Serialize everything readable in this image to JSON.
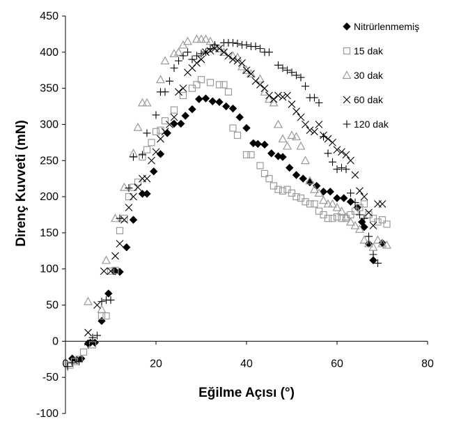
{
  "chart_data": {
    "type": "scatter",
    "title": "",
    "xlabel": "Eğilme Açısı (°)",
    "ylabel": "Direnç Kuvveti (mN)",
    "xlim": [
      0,
      80
    ],
    "ylim": [
      -100,
      450
    ],
    "xticks": [
      "0",
      "20",
      "40",
      "60",
      "80"
    ],
    "yticks": [
      "-100",
      "-50",
      "0",
      "50",
      "100",
      "150",
      "200",
      "250",
      "300",
      "350",
      "400",
      "450"
    ],
    "grid": false,
    "legend_position": "top-right",
    "series": [
      {
        "name": "Nitrürlenmemiş",
        "marker": "diamond-filled",
        "color": "#000000",
        "points": [
          [
            1.5,
            -24
          ],
          [
            2.5,
            -26
          ],
          [
            3.5,
            -24
          ],
          [
            5,
            -3
          ],
          [
            5.5,
            -2
          ],
          [
            6.5,
            -2
          ],
          [
            8,
            28
          ],
          [
            9.5,
            66
          ],
          [
            11,
            97
          ],
          [
            12,
            96
          ],
          [
            13.5,
            130
          ],
          [
            15,
            168
          ],
          [
            17,
            204
          ],
          [
            18,
            204
          ],
          [
            19.5,
            235
          ],
          [
            21,
            259
          ],
          [
            22.5,
            288
          ],
          [
            24,
            301
          ],
          [
            25.5,
            301
          ],
          [
            26.5,
            312
          ],
          [
            28,
            321
          ],
          [
            29.5,
            335
          ],
          [
            31,
            336
          ],
          [
            32.5,
            332
          ],
          [
            34,
            331
          ],
          [
            35.5,
            325
          ],
          [
            37,
            322
          ],
          [
            38.5,
            310
          ],
          [
            40,
            295
          ],
          [
            41.5,
            274
          ],
          [
            42.5,
            273
          ],
          [
            44,
            272
          ],
          [
            45.5,
            260
          ],
          [
            47,
            256
          ],
          [
            48,
            255
          ],
          [
            49.5,
            240
          ],
          [
            51,
            230
          ],
          [
            52.5,
            225
          ],
          [
            54,
            220
          ],
          [
            55.5,
            215
          ],
          [
            57,
            207
          ],
          [
            58.5,
            207
          ],
          [
            60,
            198
          ],
          [
            61.5,
            198
          ],
          [
            63,
            193
          ],
          [
            64.5,
            185
          ],
          [
            65.5,
            165
          ],
          [
            66,
            158
          ],
          [
            67,
            135
          ],
          [
            68,
            112
          ],
          [
            70,
            136
          ]
        ]
      },
      {
        "name": "15 dak",
        "marker": "square-open",
        "color": "#999999",
        "points": [
          [
            1,
            -33
          ],
          [
            2,
            -28
          ],
          [
            3,
            -25
          ],
          [
            4,
            -15
          ],
          [
            6,
            -5
          ],
          [
            8,
            35
          ],
          [
            9,
            35
          ],
          [
            10,
            97
          ],
          [
            11,
            98
          ],
          [
            12,
            153
          ],
          [
            13,
            170
          ],
          [
            14,
            200
          ],
          [
            15,
            213
          ],
          [
            16,
            220
          ],
          [
            17,
            255
          ],
          [
            18,
            265
          ],
          [
            19,
            275
          ],
          [
            20,
            290
          ],
          [
            21,
            292
          ],
          [
            22,
            305
          ],
          [
            24,
            320
          ],
          [
            26,
            340
          ],
          [
            28,
            350
          ],
          [
            29,
            355
          ],
          [
            30,
            362
          ],
          [
            32,
            358
          ],
          [
            34,
            355
          ],
          [
            35,
            355
          ],
          [
            36,
            345
          ],
          [
            37,
            295
          ],
          [
            38,
            285
          ],
          [
            40,
            258
          ],
          [
            41,
            258
          ],
          [
            43,
            243
          ],
          [
            44,
            232
          ],
          [
            45,
            225
          ],
          [
            46,
            215
          ],
          [
            47,
            210
          ],
          [
            48,
            208
          ],
          [
            49,
            210
          ],
          [
            50,
            205
          ],
          [
            51,
            200
          ],
          [
            52,
            198
          ],
          [
            53,
            193
          ],
          [
            54,
            190
          ],
          [
            55,
            190
          ],
          [
            56,
            180
          ],
          [
            57,
            175
          ],
          [
            58,
            170
          ],
          [
            59,
            170
          ],
          [
            60,
            172
          ],
          [
            61,
            170
          ],
          [
            62,
            170
          ],
          [
            63,
            175
          ],
          [
            64,
            180
          ],
          [
            65,
            185
          ],
          [
            66,
            190
          ],
          [
            67,
            175
          ],
          [
            68,
            170
          ],
          [
            69,
            165
          ],
          [
            70,
            168
          ],
          [
            71,
            162
          ]
        ]
      },
      {
        "name": "30 dak",
        "marker": "triangle-open",
        "color": "#999999",
        "points": [
          [
            5,
            55
          ],
          [
            8,
            44
          ],
          [
            9,
            112
          ],
          [
            11,
            170
          ],
          [
            13,
            213
          ],
          [
            15,
            260
          ],
          [
            16,
            296
          ],
          [
            17,
            330
          ],
          [
            18,
            330
          ],
          [
            21,
            362
          ],
          [
            22,
            388
          ],
          [
            24,
            398
          ],
          [
            25,
            400
          ],
          [
            26,
            410
          ],
          [
            27,
            415
          ],
          [
            29,
            418
          ],
          [
            30,
            418
          ],
          [
            31,
            418
          ],
          [
            32,
            415
          ],
          [
            33,
            408
          ],
          [
            34,
            405
          ],
          [
            35,
            400
          ],
          [
            37,
            395
          ],
          [
            38,
            393
          ],
          [
            39,
            380
          ],
          [
            40,
            375
          ],
          [
            41,
            370
          ],
          [
            43,
            363
          ],
          [
            44,
            345
          ],
          [
            45,
            335
          ],
          [
            46,
            330
          ],
          [
            47,
            300
          ],
          [
            48,
            280
          ],
          [
            49,
            270
          ],
          [
            50,
            285
          ],
          [
            51,
            283
          ],
          [
            52,
            270
          ],
          [
            53,
            250
          ],
          [
            54,
            222
          ],
          [
            55,
            210
          ],
          [
            56,
            205
          ],
          [
            57,
            195
          ],
          [
            58,
            190
          ],
          [
            59,
            190
          ],
          [
            60,
            185
          ],
          [
            61,
            180
          ],
          [
            62,
            172
          ],
          [
            63,
            165
          ],
          [
            64,
            160
          ],
          [
            65,
            155
          ],
          [
            66,
            140
          ],
          [
            67,
            135
          ],
          [
            68,
            130
          ],
          [
            69,
            140
          ],
          [
            70,
            135
          ],
          [
            71,
            133
          ]
        ]
      },
      {
        "name": "60 dak",
        "marker": "x",
        "color": "#000000",
        "points": [
          [
            5,
            12
          ],
          [
            7,
            50
          ],
          [
            8.5,
            97
          ],
          [
            10,
            97
          ],
          [
            11,
            118
          ],
          [
            12,
            135
          ],
          [
            13,
            168
          ],
          [
            14,
            185
          ],
          [
            15,
            200
          ],
          [
            16,
            213
          ],
          [
            17,
            225
          ],
          [
            18,
            225
          ],
          [
            19,
            250
          ],
          [
            20,
            262
          ],
          [
            21,
            280
          ],
          [
            22,
            290
          ],
          [
            23,
            300
          ],
          [
            24,
            310
          ],
          [
            25,
            345
          ],
          [
            26,
            350
          ],
          [
            27,
            372
          ],
          [
            28,
            378
          ],
          [
            29,
            385
          ],
          [
            30,
            390
          ],
          [
            31,
            400
          ],
          [
            32,
            402
          ],
          [
            33,
            405
          ],
          [
            34,
            405
          ],
          [
            35,
            400
          ],
          [
            36,
            395
          ],
          [
            37,
            390
          ],
          [
            38,
            388
          ],
          [
            39,
            385
          ],
          [
            40,
            375
          ],
          [
            41,
            370
          ],
          [
            42,
            360
          ],
          [
            43,
            355
          ],
          [
            44,
            350
          ],
          [
            45,
            340
          ],
          [
            46,
            335
          ],
          [
            47,
            340
          ],
          [
            48,
            338
          ],
          [
            49,
            340
          ],
          [
            50,
            328
          ],
          [
            51,
            318
          ],
          [
            52,
            310
          ],
          [
            53,
            300
          ],
          [
            54,
            292
          ],
          [
            55,
            290
          ],
          [
            56,
            300
          ],
          [
            57,
            285
          ],
          [
            58,
            280
          ],
          [
            59,
            275
          ],
          [
            60,
            265
          ],
          [
            61,
            262
          ],
          [
            62,
            258
          ],
          [
            63,
            250
          ],
          [
            64,
            230
          ],
          [
            65,
            208
          ],
          [
            66,
            200
          ],
          [
            67,
            178
          ],
          [
            68,
            160
          ],
          [
            69,
            190
          ],
          [
            70,
            190
          ]
        ]
      },
      {
        "name": "120 dak",
        "marker": "plus",
        "color": "#000000",
        "points": [
          [
            0.5,
            -35
          ],
          [
            1.5,
            -30
          ],
          [
            3,
            -28
          ],
          [
            5,
            -5
          ],
          [
            6,
            5
          ],
          [
            7,
            8
          ],
          [
            8,
            55
          ],
          [
            9,
            57
          ],
          [
            10,
            57
          ],
          [
            12,
            170
          ],
          [
            14,
            212
          ],
          [
            15,
            255
          ],
          [
            17,
            258
          ],
          [
            18,
            288
          ],
          [
            20,
            313
          ],
          [
            21,
            345
          ],
          [
            22,
            345
          ],
          [
            23,
            360
          ],
          [
            24,
            378
          ],
          [
            25,
            388
          ],
          [
            26,
            395
          ],
          [
            27,
            400
          ],
          [
            28,
            390
          ],
          [
            29,
            395
          ],
          [
            30,
            398
          ],
          [
            31,
            400
          ],
          [
            32,
            405
          ],
          [
            33,
            410
          ],
          [
            35,
            413
          ],
          [
            36,
            413
          ],
          [
            37,
            413
          ],
          [
            38,
            412
          ],
          [
            39,
            410
          ],
          [
            40,
            410
          ],
          [
            41,
            408
          ],
          [
            42,
            408
          ],
          [
            43,
            405
          ],
          [
            44,
            400
          ],
          [
            45,
            400
          ],
          [
            47,
            382
          ],
          [
            48,
            378
          ],
          [
            49,
            375
          ],
          [
            50,
            372
          ],
          [
            51,
            368
          ],
          [
            52,
            365
          ],
          [
            53,
            353
          ],
          [
            54,
            337
          ],
          [
            55,
            337
          ],
          [
            56,
            330
          ],
          [
            57,
            283
          ],
          [
            58,
            260
          ],
          [
            59,
            248
          ],
          [
            60,
            238
          ],
          [
            61,
            240
          ],
          [
            62,
            238
          ],
          [
            63,
            205
          ],
          [
            64,
            192
          ],
          [
            65,
            175
          ],
          [
            66,
            170
          ],
          [
            67,
            145
          ],
          [
            68,
            120
          ],
          [
            69,
            108
          ]
        ]
      }
    ]
  }
}
